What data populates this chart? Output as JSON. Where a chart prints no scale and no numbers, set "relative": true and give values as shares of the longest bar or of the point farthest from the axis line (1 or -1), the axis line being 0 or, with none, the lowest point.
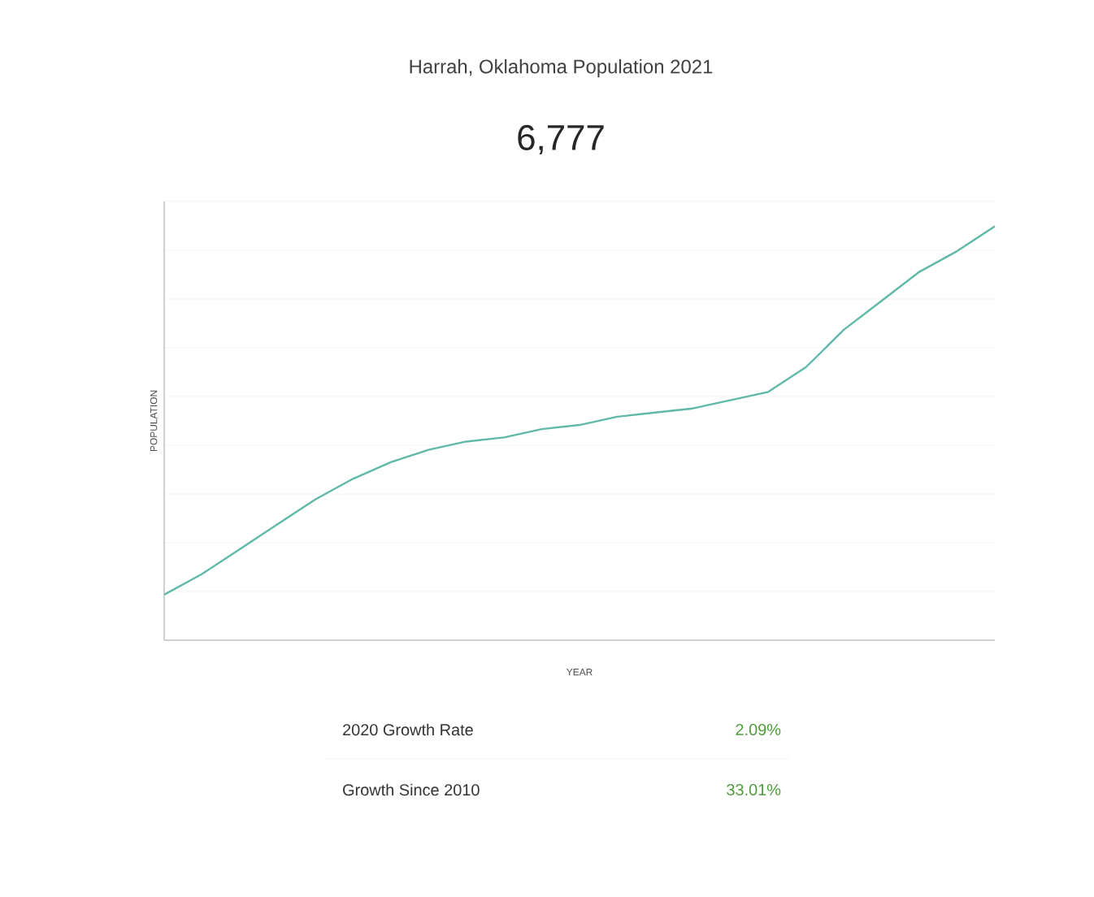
{
  "chart_data": {
    "type": "line",
    "title": "Harrah, Oklahoma Population 2021",
    "subtitle": "6,777",
    "xlabel": "YEAR",
    "ylabel": "POPULATION",
    "relative": true,
    "grid": "y",
    "color": "#5fb8a8",
    "categories": [
      null,
      null,
      null,
      null,
      null,
      null,
      null,
      null,
      null,
      null,
      null,
      null,
      null,
      null,
      null,
      null,
      null,
      null,
      null,
      null,
      null,
      null,
      null
    ],
    "values": [
      0.11,
      0.16,
      0.22,
      0.28,
      0.34,
      0.39,
      0.43,
      0.46,
      0.48,
      0.49,
      0.51,
      0.52,
      0.54,
      0.55,
      0.56,
      0.58,
      0.6,
      0.66,
      0.75,
      0.82,
      0.89,
      0.94,
      1.0
    ],
    "annotations": [
      "2020 Growth Rate",
      "2.09%",
      "Growth Since 2010",
      "33.01%"
    ]
  }
}
